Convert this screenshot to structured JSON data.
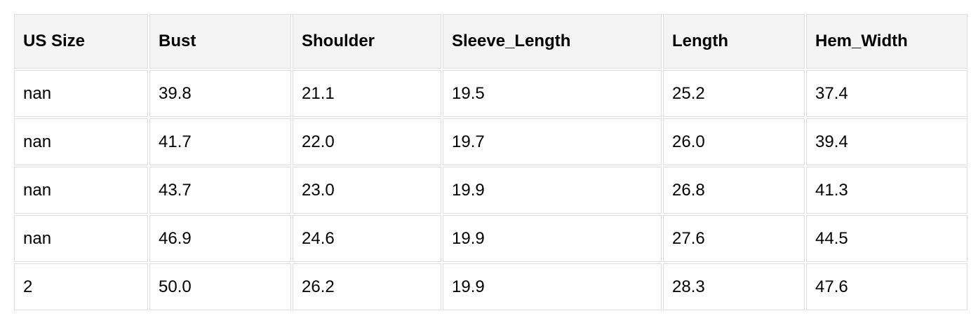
{
  "table": {
    "headers": [
      "US Size",
      "Bust",
      "Shoulder",
      "Sleeve_Length",
      "Length",
      "Hem_Width"
    ],
    "rows": [
      [
        "nan",
        "39.8",
        "21.1",
        "19.5",
        "25.2",
        "37.4"
      ],
      [
        "nan",
        "41.7",
        "22.0",
        "19.7",
        "26.0",
        "39.4"
      ],
      [
        "nan",
        "43.7",
        "23.0",
        "19.9",
        "26.8",
        "41.3"
      ],
      [
        "nan",
        "46.9",
        "24.6",
        "19.9",
        "27.6",
        "44.5"
      ],
      [
        "2",
        "50.0",
        "26.2",
        "19.9",
        "28.3",
        "47.6"
      ]
    ]
  }
}
